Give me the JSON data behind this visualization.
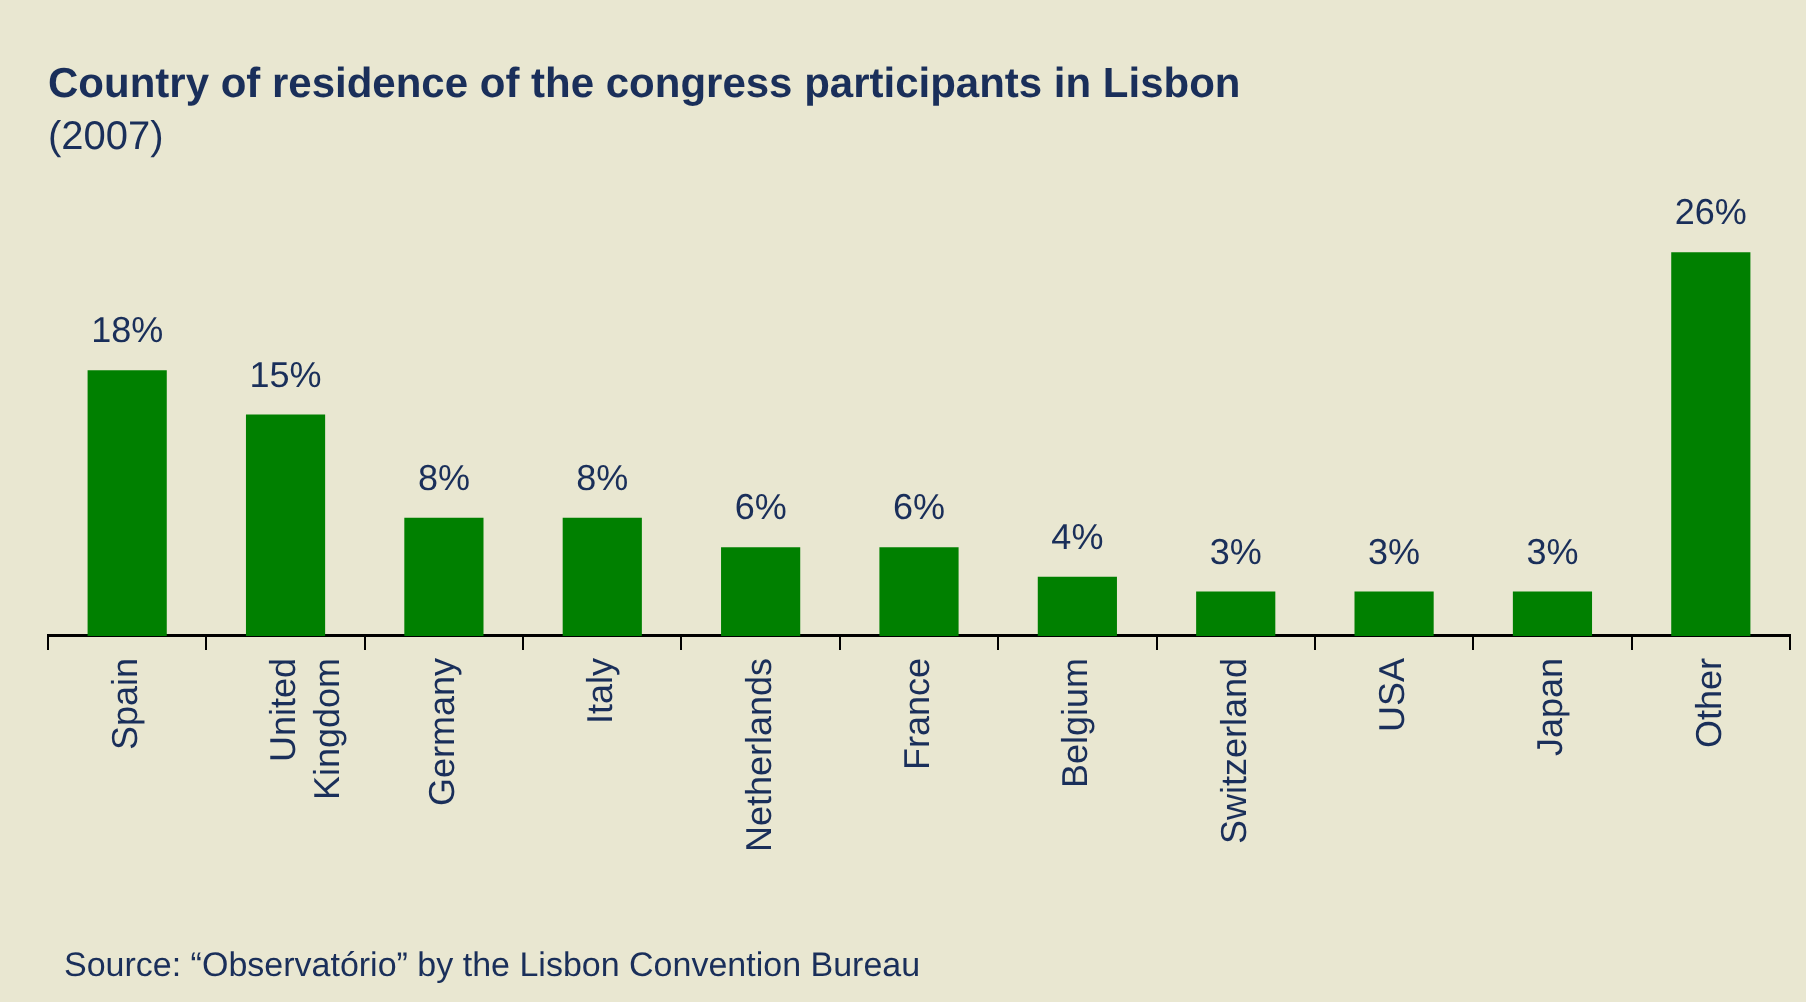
{
  "chart_data": {
    "type": "bar",
    "title": "Country of residence of the congress participants in Lisbon",
    "subtitle": "(2007)",
    "categories": [
      "Spain",
      "United Kingdom",
      "Germany",
      "Italy",
      "Netherlands",
      "France",
      "Belgium",
      "Switzerland",
      "USA",
      "Japan",
      "Other"
    ],
    "values": [
      18,
      15,
      8,
      8,
      6,
      6,
      4,
      3,
      3,
      3,
      26
    ],
    "value_labels": [
      "18%",
      "15%",
      "8%",
      "8%",
      "6%",
      "6%",
      "4%",
      "3%",
      "3%",
      "3%",
      "26%"
    ],
    "color": "#008000",
    "grid": false,
    "legend": false,
    "annotations": [
      "Source: “Observatório” by the Lisbon Convention Bureau"
    ]
  }
}
